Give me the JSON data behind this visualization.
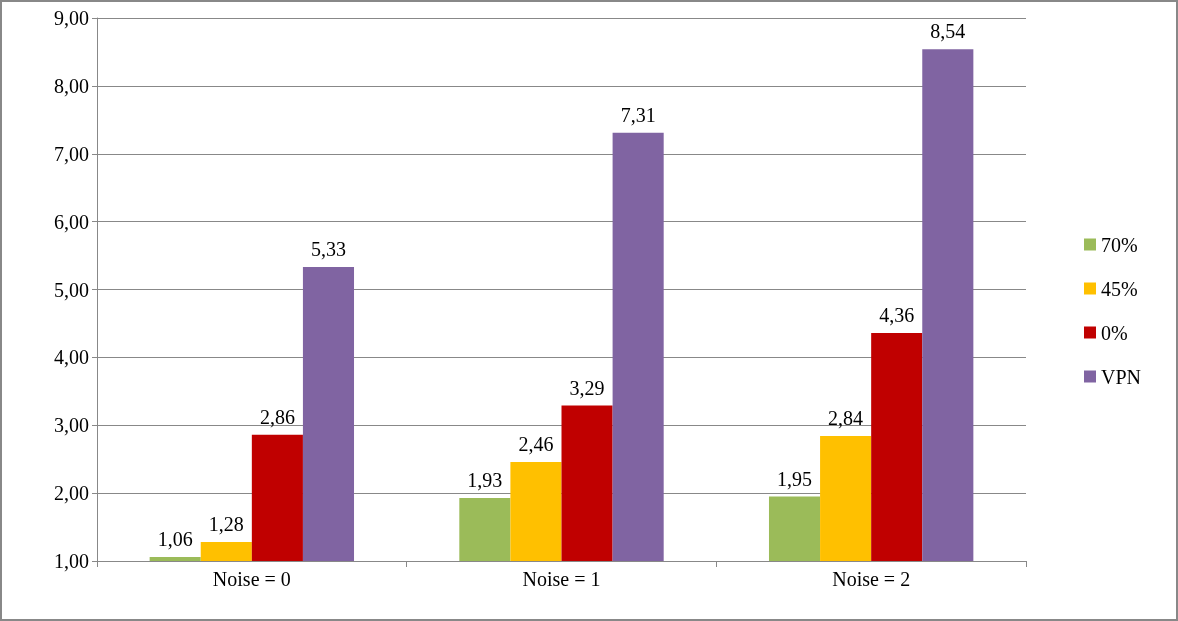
{
  "chart_data": {
    "type": "bar",
    "categories": [
      "Noise = 0",
      "Noise = 1",
      "Noise = 2"
    ],
    "series": [
      {
        "name": "70%",
        "color": "#9bbb59",
        "values": [
          1.06,
          1.93,
          1.95
        ],
        "value_labels": [
          "1,06",
          "1,93",
          "1,95"
        ]
      },
      {
        "name": "45%",
        "color": "#ffc000",
        "values": [
          1.28,
          2.46,
          2.84
        ],
        "value_labels": [
          "1,28",
          "2,46",
          "2,84"
        ]
      },
      {
        "name": "0%",
        "color": "#c00000",
        "values": [
          2.86,
          3.29,
          4.36
        ],
        "value_labels": [
          "2,86",
          "3,29",
          "4,36"
        ]
      },
      {
        "name": "VPN",
        "color": "#8064a2",
        "values": [
          5.33,
          7.31,
          8.54
        ],
        "value_labels": [
          "5,33",
          "7,31",
          "8,54"
        ]
      }
    ],
    "ylim": [
      1,
      9
    ],
    "yticks": [
      {
        "value": 1,
        "label": "1,00"
      },
      {
        "value": 2,
        "label": "2,00"
      },
      {
        "value": 3,
        "label": "3,00"
      },
      {
        "value": 4,
        "label": "4,00"
      },
      {
        "value": 5,
        "label": "5,00"
      },
      {
        "value": 6,
        "label": "6,00"
      },
      {
        "value": 7,
        "label": "7,00"
      },
      {
        "value": 8,
        "label": "8,00"
      },
      {
        "value": 9,
        "label": "9,00"
      }
    ],
    "grid": "y",
    "legend": "right"
  }
}
